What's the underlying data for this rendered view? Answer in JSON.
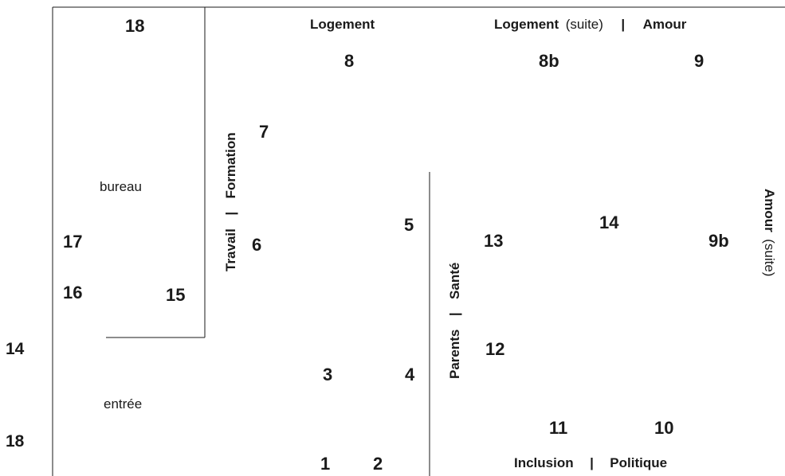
{
  "rooms": {
    "bureau": "bureau",
    "entree": "entrée"
  },
  "zones": {
    "logement": "Logement",
    "logement_suite_bold": "Logement",
    "suite": "(suite)",
    "amour": "Amour",
    "amour_suite_bold": "Amour",
    "travail": "Travail",
    "formation": "Formation",
    "parents": "Parents",
    "sante": "Santé",
    "inclusion": "Inclusion",
    "politique": "Politique",
    "separator": "|"
  },
  "markers": {
    "m1": "1",
    "m2": "2",
    "m3": "3",
    "m4": "4",
    "m5": "5",
    "m6": "6",
    "m7": "7",
    "m8": "8",
    "m8b": "8b",
    "m9": "9",
    "m9b": "9b",
    "m10": "10",
    "m11": "11",
    "m12": "12",
    "m13": "13",
    "m14": "14",
    "m15": "15",
    "m16": "16",
    "m17": "17",
    "m18_top": "18",
    "m14_left": "14",
    "m18_left": "18"
  }
}
